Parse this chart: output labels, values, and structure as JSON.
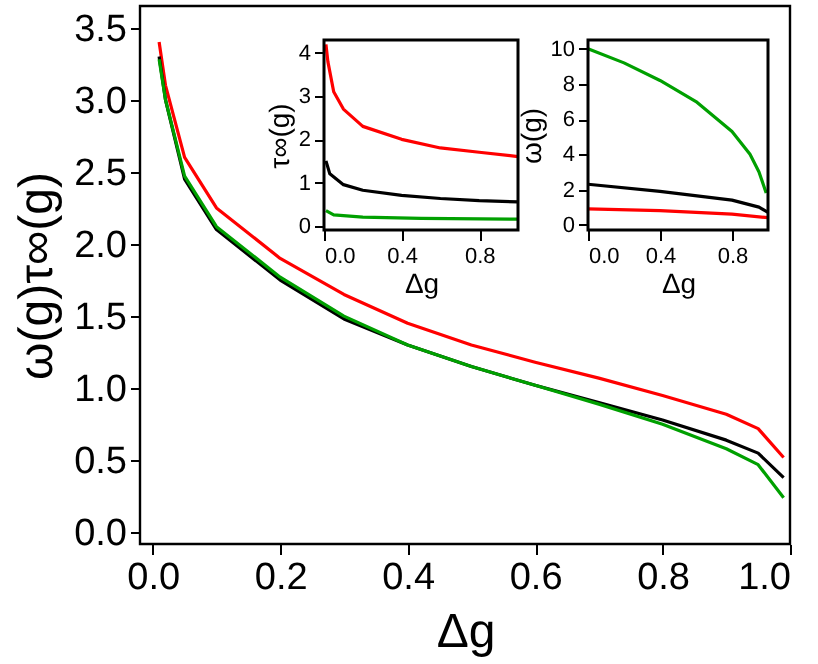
{
  "chart_data": [
    {
      "type": "line",
      "xlabel": "Δg",
      "ylabel": "ω(g)τ∞(g)",
      "xlim": [
        -0.02,
        1.0
      ],
      "ylim": [
        -0.08,
        3.65
      ],
      "grid": false,
      "xticks": [
        {
          "value": 0,
          "label": "0.0"
        },
        {
          "value": 0.2,
          "label": "0.2"
        },
        {
          "value": 0.4,
          "label": "0.4"
        },
        {
          "value": 0.6,
          "label": "0.6"
        },
        {
          "value": 0.8,
          "label": "0.8"
        },
        {
          "value": 1,
          "label": "1.0"
        }
      ],
      "yticks": [
        {
          "value": 0,
          "label": "0.0"
        },
        {
          "value": 0.5,
          "label": "0.5"
        },
        {
          "value": 1,
          "label": "1.0"
        },
        {
          "value": 1.5,
          "label": "1.5"
        },
        {
          "value": 2,
          "label": "2.0"
        },
        {
          "value": 2.5,
          "label": "2.5"
        },
        {
          "value": 3,
          "label": "3.0"
        },
        {
          "value": 3.5,
          "label": "3.5"
        }
      ],
      "series": [
        {
          "color": "#ff0000",
          "x": [
            0.01,
            0.02,
            0.05,
            0.1,
            0.2,
            0.3,
            0.4,
            0.5,
            0.6,
            0.7,
            0.8,
            0.9,
            0.95,
            0.99
          ],
          "values": [
            3.4,
            3.1,
            2.6,
            2.25,
            1.9,
            1.65,
            1.45,
            1.3,
            1.18,
            1.07,
            0.95,
            0.82,
            0.72,
            0.52
          ]
        },
        {
          "color": "#000000",
          "x": [
            0.01,
            0.02,
            0.05,
            0.1,
            0.2,
            0.3,
            0.4,
            0.5,
            0.6,
            0.7,
            0.8,
            0.9,
            0.95,
            0.99
          ],
          "values": [
            3.3,
            3.0,
            2.45,
            2.1,
            1.75,
            1.48,
            1.3,
            1.15,
            1.02,
            0.9,
            0.78,
            0.64,
            0.55,
            0.38
          ]
        },
        {
          "color": "#00a000",
          "x": [
            0.01,
            0.02,
            0.05,
            0.1,
            0.2,
            0.3,
            0.4,
            0.5,
            0.6,
            0.7,
            0.8,
            0.9,
            0.95,
            0.99
          ],
          "values": [
            3.28,
            3.0,
            2.47,
            2.12,
            1.77,
            1.5,
            1.3,
            1.15,
            1.02,
            0.89,
            0.75,
            0.58,
            0.47,
            0.24
          ]
        }
      ]
    },
    {
      "type": "line",
      "xlabel": "Δg",
      "ylabel": "τ∞(g)",
      "xlim": [
        0,
        1
      ],
      "ylim": [
        -0.1,
        4.3
      ],
      "grid": false,
      "xticks": [
        {
          "value": 0,
          "label": "0.0"
        },
        {
          "value": 0.4,
          "label": "0.4"
        },
        {
          "value": 0.8,
          "label": "0.8"
        }
      ],
      "yticks": [
        0,
        1,
        2,
        3,
        4
      ],
      "series": [
        {
          "color": "#ff0000",
          "x": [
            0.01,
            0.02,
            0.05,
            0.1,
            0.2,
            0.4,
            0.6,
            0.8,
            1.0
          ],
          "values": [
            4.2,
            3.8,
            3.1,
            2.7,
            2.3,
            2.0,
            1.8,
            1.7,
            1.6
          ]
        },
        {
          "color": "#000000",
          "x": [
            0.01,
            0.03,
            0.1,
            0.2,
            0.4,
            0.6,
            0.8,
            1.0
          ],
          "values": [
            1.5,
            1.2,
            0.95,
            0.82,
            0.7,
            0.63,
            0.58,
            0.55
          ]
        },
        {
          "color": "#00a000",
          "x": [
            0.01,
            0.05,
            0.2,
            0.5,
            1.0
          ],
          "values": [
            0.35,
            0.25,
            0.2,
            0.17,
            0.15
          ]
        }
      ]
    },
    {
      "type": "line",
      "xlabel": "Δg",
      "ylabel": "ω(g)",
      "xlim": [
        0,
        1
      ],
      "ylim": [
        -0.3,
        10.5
      ],
      "grid": false,
      "xticks": [
        {
          "value": 0,
          "label": "0.0"
        },
        {
          "value": 0.4,
          "label": "0.4"
        },
        {
          "value": 0.8,
          "label": "0.8"
        }
      ],
      "yticks": [
        0,
        2,
        4,
        6,
        8,
        10
      ],
      "series": [
        {
          "color": "#00a000",
          "x": [
            0,
            0.2,
            0.4,
            0.6,
            0.8,
            0.9,
            0.95,
            0.99
          ],
          "values": [
            10,
            9.2,
            8.2,
            7.0,
            5.3,
            4.0,
            3.0,
            1.8
          ]
        },
        {
          "color": "#000000",
          "x": [
            0,
            0.4,
            0.8,
            0.95,
            1.0
          ],
          "values": [
            2.3,
            1.9,
            1.4,
            1.0,
            0.7
          ]
        },
        {
          "color": "#ff0000",
          "x": [
            0,
            0.4,
            0.8,
            1.0
          ],
          "values": [
            0.9,
            0.8,
            0.6,
            0.4
          ]
        }
      ]
    }
  ]
}
